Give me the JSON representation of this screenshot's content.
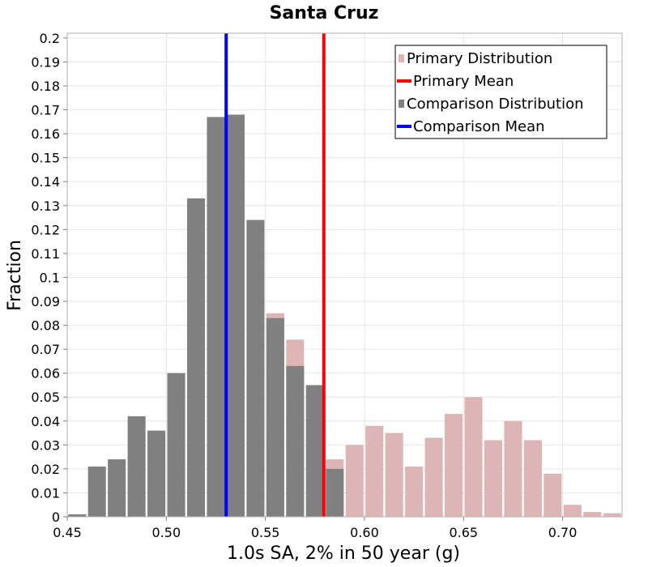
{
  "chart_data": {
    "type": "bar",
    "title": "Santa Cruz",
    "xlabel": "1.0s SA, 2% in 50 year (g)",
    "ylabel": "Fraction",
    "xlim": [
      0.45,
      0.73
    ],
    "ylim": [
      0,
      0.202
    ],
    "xticks": [
      "0.45",
      "0.50",
      "0.55",
      "0.60",
      "0.65",
      "0.70"
    ],
    "yticks": [
      "0",
      "0.01",
      "0.02",
      "0.03",
      "0.04",
      "0.05",
      "0.06",
      "0.07",
      "0.08",
      "0.09",
      "0.1",
      "0.11",
      "0.12",
      "0.13",
      "0.14",
      "0.15",
      "0.16",
      "0.17",
      "0.18",
      "0.19",
      "0.2"
    ],
    "grid": true,
    "bin_width": 0.01,
    "primary": {
      "name": "Primary Distribution",
      "color": "#deb5b5",
      "bins": [
        0.45,
        0.55,
        0.56,
        0.57,
        0.58,
        0.59,
        0.6,
        0.61,
        0.62,
        0.63,
        0.64,
        0.65,
        0.66,
        0.67,
        0.68,
        0.69,
        0.7,
        0.71,
        0.72
      ],
      "values": [
        0.001,
        0.085,
        0.074,
        0.051,
        0.024,
        0.03,
        0.038,
        0.035,
        0.021,
        0.033,
        0.043,
        0.05,
        0.032,
        0.04,
        0.032,
        0.018,
        0.005,
        0.002,
        0.0015
      ]
    },
    "comparison": {
      "name": "Comparison Distribution",
      "color": "#808080",
      "bins": [
        0.45,
        0.46,
        0.47,
        0.48,
        0.49,
        0.5,
        0.51,
        0.52,
        0.53,
        0.54,
        0.55,
        0.56,
        0.57,
        0.58
      ],
      "values": [
        0.001,
        0.021,
        0.024,
        0.042,
        0.036,
        0.06,
        0.133,
        0.167,
        0.168,
        0.124,
        0.083,
        0.063,
        0.055,
        0.02
      ]
    },
    "primary_mean": {
      "name": "Primary Mean",
      "value": 0.5795,
      "color": "#ff0000"
    },
    "comparison_mean": {
      "name": "Comparison Mean",
      "value": 0.5302,
      "color": "#0000ff"
    },
    "legend_position": "top-right",
    "legend": [
      {
        "label": "Primary Distribution",
        "kind": "box",
        "color": "#deb5b5"
      },
      {
        "label": "Primary Mean",
        "kind": "line",
        "color": "#ff0000"
      },
      {
        "label": "Comparison Distribution",
        "kind": "box",
        "color": "#808080"
      },
      {
        "label": "Comparison Mean",
        "kind": "line",
        "color": "#0000ff"
      }
    ]
  }
}
